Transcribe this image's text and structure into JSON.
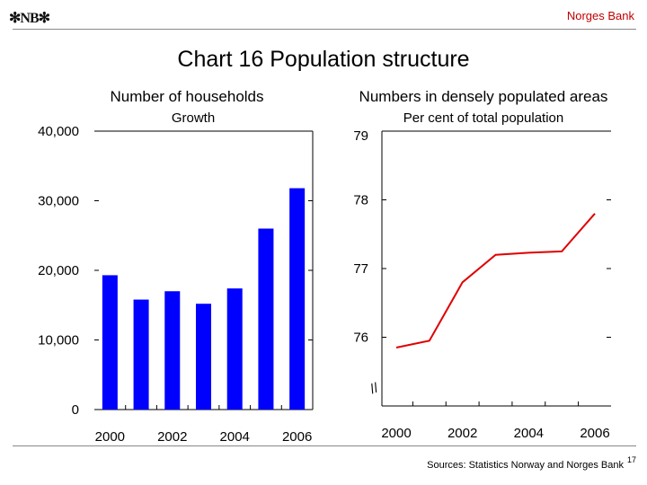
{
  "header": {
    "logo_text": "NB",
    "brand": "Norges Bank"
  },
  "title": "Chart 16 Population structure",
  "footer": {
    "sources": "Sources: Statistics Norway and Norges Bank",
    "page_number": "17"
  },
  "colors": {
    "bar": "#0000ff",
    "line": "#e00000",
    "brand": "#c00000"
  },
  "chart_data": [
    {
      "type": "bar",
      "title": "Number of households",
      "subtitle": "Growth",
      "categories": [
        "2000",
        "2001",
        "2002",
        "2003",
        "2004",
        "2005",
        "2006"
      ],
      "x_tick_labels": [
        "2000",
        "2002",
        "2004",
        "2006"
      ],
      "values": [
        19300,
        15800,
        17000,
        15200,
        17400,
        26000,
        31800
      ],
      "ylim": [
        0,
        40000
      ],
      "y_ticks": [
        "0",
        "10,000",
        "20,000",
        "30,000",
        "40,000"
      ],
      "grid": false
    },
    {
      "type": "line",
      "title": "Numbers in densely populated areas",
      "subtitle": "Per cent of total population",
      "x": [
        2000,
        2001,
        2002,
        2003,
        2004,
        2005,
        2006
      ],
      "x_tick_labels": [
        "2000",
        "2002",
        "2004",
        "2006"
      ],
      "values": [
        75.85,
        75.95,
        76.8,
        77.2,
        77.23,
        77.25,
        77.8
      ],
      "ylim": [
        75,
        79
      ],
      "y_ticks": [
        "76",
        "77",
        "78",
        "79"
      ],
      "axis_break": "//",
      "grid": false
    }
  ]
}
